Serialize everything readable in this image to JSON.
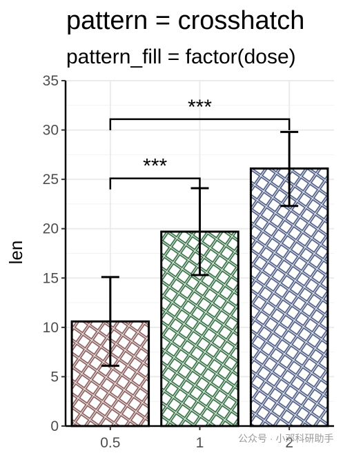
{
  "chart_data": {
    "type": "bar",
    "title": "pattern = crosshatch",
    "subtitle": "pattern_fill = factor(dose)",
    "xlabel": "",
    "ylabel": "len",
    "ylim": [
      0,
      35
    ],
    "yticks": [
      0,
      5,
      10,
      15,
      20,
      25,
      30,
      35
    ],
    "categories": [
      "0.5",
      "1",
      "2"
    ],
    "values": [
      10.6,
      19.7,
      26.1
    ],
    "error_low": [
      6.1,
      15.3,
      22.3
    ],
    "error_high": [
      15.1,
      24.1,
      29.8
    ],
    "pattern": "crosshatch",
    "pattern_colors": [
      "#8b5a5a",
      "#2f6e3f",
      "#4a5a85"
    ],
    "grid": true,
    "significance": [
      {
        "from": 0,
        "to": 1,
        "label": "***",
        "y": 25.1
      },
      {
        "from": 0,
        "to": 2,
        "label": "***",
        "y": 31.1
      }
    ]
  },
  "watermark": "公众号 · 小邓科研助手"
}
